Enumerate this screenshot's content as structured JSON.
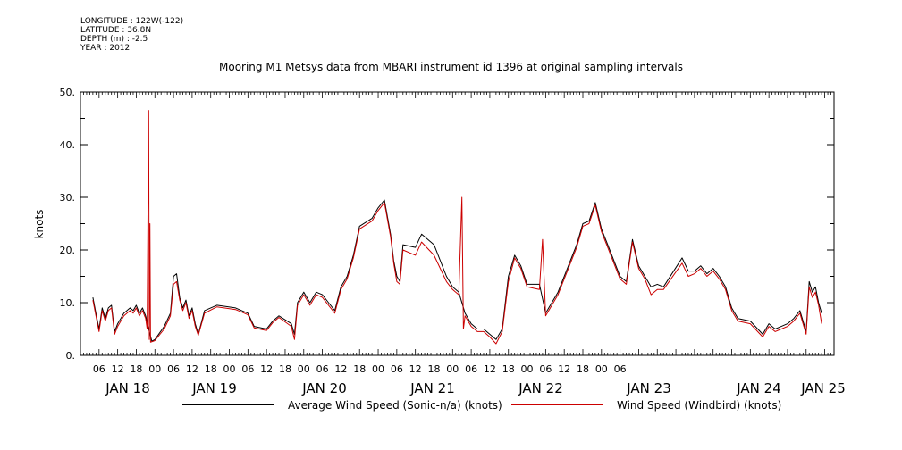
{
  "meta": {
    "longitude": "LONGITUDE : 122W(-122)",
    "latitude": "LATITUDE : 36.8N",
    "depth": "DEPTH (m) : -2.5",
    "year": "YEAR : 2012"
  },
  "chart_data": {
    "type": "line",
    "title": "Mooring M1 Metsys data from MBARI instrument id 1396 at original sampling intervals",
    "ylabel": "knots",
    "xlabel": "",
    "ylim": [
      0,
      50
    ],
    "y_ticks": [
      0,
      10,
      20,
      30,
      40,
      50
    ],
    "y_tick_labels": [
      "0.",
      "10.",
      "20.",
      "30.",
      "40.",
      "50."
    ],
    "x_range_hours": [
      -20,
      151
    ],
    "x_hour_ticks": [
      "06",
      "12",
      "18",
      "00",
      "06",
      "12",
      "18",
      "00",
      "06",
      "12",
      "18",
      "00",
      "06",
      "12",
      "18",
      "00",
      "06",
      "12",
      "18",
      "00",
      "06",
      "12",
      "18",
      "00",
      "06",
      "12",
      "18",
      "00",
      "06"
    ],
    "x_day_labels": [
      "JAN 18",
      "JAN 19",
      "JAN 20",
      "JAN 21",
      "JAN 22",
      "JAN 23",
      "JAN 24",
      "JAN 25"
    ],
    "grid": false,
    "legend_position": "bottom",
    "series": [
      {
        "name": "Average Wind Speed (Sonic-n/a) (knots)",
        "color": "#000000",
        "points": [
          [
            -20,
            11
          ],
          [
            -19,
            8
          ],
          [
            -18,
            5
          ],
          [
            -17,
            9
          ],
          [
            -16,
            7
          ],
          [
            -15,
            9
          ],
          [
            -14,
            9.5
          ],
          [
            -13,
            4.5
          ],
          [
            -12,
            6
          ],
          [
            -10,
            8
          ],
          [
            -8,
            9
          ],
          [
            -7,
            8.5
          ],
          [
            -6,
            9.5
          ],
          [
            -5,
            8
          ],
          [
            -4,
            9
          ],
          [
            -3,
            7.5
          ],
          [
            -2,
            5
          ],
          [
            -1,
            2.7
          ],
          [
            0,
            3
          ],
          [
            3,
            5.5
          ],
          [
            5,
            8
          ],
          [
            6,
            15
          ],
          [
            7,
            15.5
          ],
          [
            8,
            11
          ],
          [
            9,
            9
          ],
          [
            10,
            10.5
          ],
          [
            11,
            7.5
          ],
          [
            12,
            9
          ],
          [
            13,
            6
          ],
          [
            14,
            4
          ],
          [
            16,
            8.5
          ],
          [
            20,
            9.5
          ],
          [
            26,
            9
          ],
          [
            28,
            8.5
          ],
          [
            30,
            8
          ],
          [
            32,
            5.5
          ],
          [
            36,
            5
          ],
          [
            38,
            6.5
          ],
          [
            40,
            7.5
          ],
          [
            44,
            6
          ],
          [
            45,
            4
          ],
          [
            46,
            10
          ],
          [
            48,
            12
          ],
          [
            50,
            10
          ],
          [
            52,
            12
          ],
          [
            54,
            11.5
          ],
          [
            56,
            10
          ],
          [
            58,
            8.5
          ],
          [
            60,
            13
          ],
          [
            62,
            15
          ],
          [
            64,
            19
          ],
          [
            66,
            24.5
          ],
          [
            70,
            26
          ],
          [
            72,
            28
          ],
          [
            74,
            29.5
          ],
          [
            76,
            23
          ],
          [
            77,
            18
          ],
          [
            78,
            15
          ],
          [
            79,
            14
          ],
          [
            80,
            21
          ],
          [
            84,
            20.5
          ],
          [
            86,
            23
          ],
          [
            90,
            21
          ],
          [
            94,
            15
          ],
          [
            96,
            13
          ],
          [
            98,
            12
          ],
          [
            100,
            8
          ],
          [
            102,
            6
          ],
          [
            104,
            5
          ],
          [
            106,
            5
          ],
          [
            108,
            4
          ],
          [
            110,
            3
          ],
          [
            112,
            5
          ],
          [
            114,
            15
          ],
          [
            116,
            19
          ],
          [
            118,
            17
          ],
          [
            120,
            13.5
          ],
          [
            124,
            13.5
          ],
          [
            126,
            8
          ],
          [
            130,
            12
          ],
          [
            136,
            21
          ],
          [
            138,
            25
          ],
          [
            140,
            25.5
          ],
          [
            142,
            29
          ],
          [
            144,
            24
          ],
          [
            146,
            21
          ],
          [
            148,
            18
          ],
          [
            150,
            15
          ],
          [
            152,
            14
          ],
          [
            154,
            22
          ],
          [
            156,
            17
          ],
          [
            158,
            15
          ],
          [
            160,
            13
          ],
          [
            162,
            13.5
          ],
          [
            164,
            13
          ],
          [
            170,
            18.5
          ],
          [
            172,
            16
          ],
          [
            174,
            16
          ],
          [
            176,
            17
          ],
          [
            178,
            15.5
          ],
          [
            180,
            16.5
          ],
          [
            182,
            15
          ],
          [
            184,
            13
          ],
          [
            186,
            9
          ],
          [
            188,
            7
          ],
          [
            192,
            6.5
          ],
          [
            196,
            4
          ],
          [
            198,
            6
          ],
          [
            200,
            5
          ],
          [
            202,
            5.5
          ],
          [
            204,
            6
          ],
          [
            206,
            7
          ],
          [
            208,
            8.5
          ],
          [
            210,
            4.5
          ],
          [
            211,
            14
          ],
          [
            212,
            12
          ],
          [
            213,
            13
          ],
          [
            214,
            10
          ],
          [
            215,
            8
          ]
        ]
      },
      {
        "name": "Wind Speed (Windbird) (knots)",
        "color": "#cc0000",
        "points": [
          [
            -20,
            10.5
          ],
          [
            -19,
            7.5
          ],
          [
            -18,
            4.5
          ],
          [
            -17,
            8.5
          ],
          [
            -16,
            6.5
          ],
          [
            -15,
            8.5
          ],
          [
            -14,
            9
          ],
          [
            -13,
            4
          ],
          [
            -12,
            5.5
          ],
          [
            -10,
            7.5
          ],
          [
            -8,
            8.5
          ],
          [
            -7,
            8
          ],
          [
            -6,
            9
          ],
          [
            -5,
            7.5
          ],
          [
            -4,
            8.5
          ],
          [
            -3,
            7
          ],
          [
            -2.5,
            5
          ],
          [
            -2,
            46.5
          ],
          [
            -1.8,
            3
          ],
          [
            -1.6,
            25
          ],
          [
            -1.4,
            2.5
          ],
          [
            0,
            2.8
          ],
          [
            3,
            5
          ],
          [
            5,
            7.5
          ],
          [
            6,
            13.5
          ],
          [
            7,
            14
          ],
          [
            8,
            10.5
          ],
          [
            9,
            8.5
          ],
          [
            10,
            10
          ],
          [
            11,
            7
          ],
          [
            12,
            8.5
          ],
          [
            13,
            5.5
          ],
          [
            14,
            3.8
          ],
          [
            16,
            8
          ],
          [
            20,
            9.2
          ],
          [
            26,
            8.7
          ],
          [
            28,
            8.2
          ],
          [
            30,
            7.7
          ],
          [
            32,
            5.2
          ],
          [
            36,
            4.7
          ],
          [
            38,
            6.2
          ],
          [
            40,
            7.2
          ],
          [
            44,
            5.5
          ],
          [
            45,
            3
          ],
          [
            46,
            9.5
          ],
          [
            48,
            11.5
          ],
          [
            50,
            9.5
          ],
          [
            52,
            11.5
          ],
          [
            54,
            11
          ],
          [
            56,
            9.5
          ],
          [
            58,
            8
          ],
          [
            60,
            12.5
          ],
          [
            62,
            14.5
          ],
          [
            64,
            18.5
          ],
          [
            66,
            24
          ],
          [
            70,
            25.5
          ],
          [
            72,
            27.5
          ],
          [
            74,
            29
          ],
          [
            76,
            22.5
          ],
          [
            77,
            17.5
          ],
          [
            78,
            14
          ],
          [
            79,
            13.5
          ],
          [
            80,
            20
          ],
          [
            84,
            19
          ],
          [
            86,
            21.5
          ],
          [
            90,
            19
          ],
          [
            94,
            14
          ],
          [
            96,
            12.5
          ],
          [
            98,
            11.5
          ],
          [
            99,
            30
          ],
          [
            99.5,
            5
          ],
          [
            100,
            7.5
          ],
          [
            102,
            5.5
          ],
          [
            104,
            4.5
          ],
          [
            106,
            4.5
          ],
          [
            108,
            3.5
          ],
          [
            110,
            2.2
          ],
          [
            112,
            4.5
          ],
          [
            114,
            14
          ],
          [
            116,
            18.5
          ],
          [
            118,
            16.5
          ],
          [
            120,
            13
          ],
          [
            124,
            12.5
          ],
          [
            125,
            22
          ],
          [
            126,
            7.5
          ],
          [
            130,
            11.5
          ],
          [
            136,
            20.5
          ],
          [
            138,
            24.5
          ],
          [
            140,
            25
          ],
          [
            142,
            28.5
          ],
          [
            144,
            23.5
          ],
          [
            146,
            20.5
          ],
          [
            148,
            17.5
          ],
          [
            150,
            14.5
          ],
          [
            152,
            13.5
          ],
          [
            154,
            21.5
          ],
          [
            156,
            16.5
          ],
          [
            158,
            14.5
          ],
          [
            160,
            11.5
          ],
          [
            162,
            12.5
          ],
          [
            164,
            12.5
          ],
          [
            170,
            17.5
          ],
          [
            172,
            15
          ],
          [
            174,
            15.5
          ],
          [
            176,
            16.5
          ],
          [
            178,
            15
          ],
          [
            180,
            16
          ],
          [
            182,
            14.5
          ],
          [
            184,
            12.5
          ],
          [
            186,
            8.5
          ],
          [
            188,
            6.5
          ],
          [
            192,
            6
          ],
          [
            196,
            3.5
          ],
          [
            198,
            5.5
          ],
          [
            200,
            4.5
          ],
          [
            202,
            5
          ],
          [
            204,
            5.5
          ],
          [
            206,
            6.5
          ],
          [
            208,
            8
          ],
          [
            210,
            4
          ],
          [
            211,
            13
          ],
          [
            212,
            11
          ],
          [
            213,
            12
          ],
          [
            214,
            9.5
          ],
          [
            215,
            6
          ]
        ]
      }
    ]
  }
}
